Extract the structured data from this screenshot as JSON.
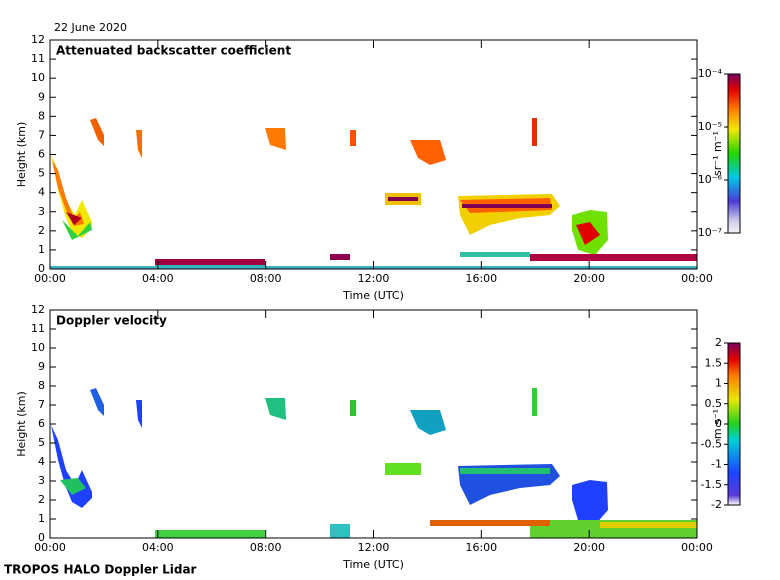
{
  "date": "22 June 2020",
  "footer": "TROPOS HALO Doppler Lidar",
  "chart_data": [
    {
      "type": "heatmap",
      "title": "Attenuated backscatter coefficient",
      "x_label": "Time (UTC)",
      "y_label": "Height (km)",
      "xlim": [
        0,
        24
      ],
      "xticks": [
        {
          "value": 0,
          "label": "00:00"
        },
        {
          "value": 4,
          "label": "04:00"
        },
        {
          "value": 8,
          "label": "08:00"
        },
        {
          "value": 12,
          "label": "12:00"
        },
        {
          "value": 16,
          "label": "16:00"
        },
        {
          "value": 20,
          "label": "20:00"
        },
        {
          "value": 24,
          "label": "00:00"
        }
      ],
      "ylim": [
        0,
        12
      ],
      "yticks": [
        0,
        1,
        2,
        3,
        4,
        5,
        6,
        7,
        8,
        9,
        10,
        11,
        12
      ],
      "colorbar": {
        "label": "sr⁻¹ m⁻¹",
        "scale": "log",
        "lim": [
          1e-07,
          0.0001
        ],
        "ticks": [
          {
            "value": 1e-07,
            "label": "10⁻⁷"
          },
          {
            "value": 1e-06,
            "label": "10⁻⁶"
          },
          {
            "value": 1e-05,
            "label": "10⁻⁵"
          },
          {
            "value": 0.0001,
            "label": "10⁻⁴"
          }
        ]
      }
    },
    {
      "type": "heatmap",
      "title": "Doppler velocity",
      "x_label": "Time (UTC)",
      "y_label": "Height (km)",
      "xlim": [
        0,
        24
      ],
      "xticks": [
        {
          "value": 0,
          "label": "00:00"
        },
        {
          "value": 4,
          "label": "04:00"
        },
        {
          "value": 8,
          "label": "08:00"
        },
        {
          "value": 12,
          "label": "12:00"
        },
        {
          "value": 16,
          "label": "16:00"
        },
        {
          "value": 20,
          "label": "20:00"
        },
        {
          "value": 24,
          "label": "00:00"
        }
      ],
      "ylim": [
        0,
        12
      ],
      "yticks": [
        0,
        1,
        2,
        3,
        4,
        5,
        6,
        7,
        8,
        9,
        10,
        11,
        12
      ],
      "colorbar": {
        "label": "m s⁻¹",
        "scale": "linear",
        "lim": [
          -2,
          2
        ],
        "ticks": [
          2,
          1.5,
          1,
          0.5,
          0,
          -0.5,
          -1,
          -1.5,
          -2
        ]
      }
    }
  ]
}
